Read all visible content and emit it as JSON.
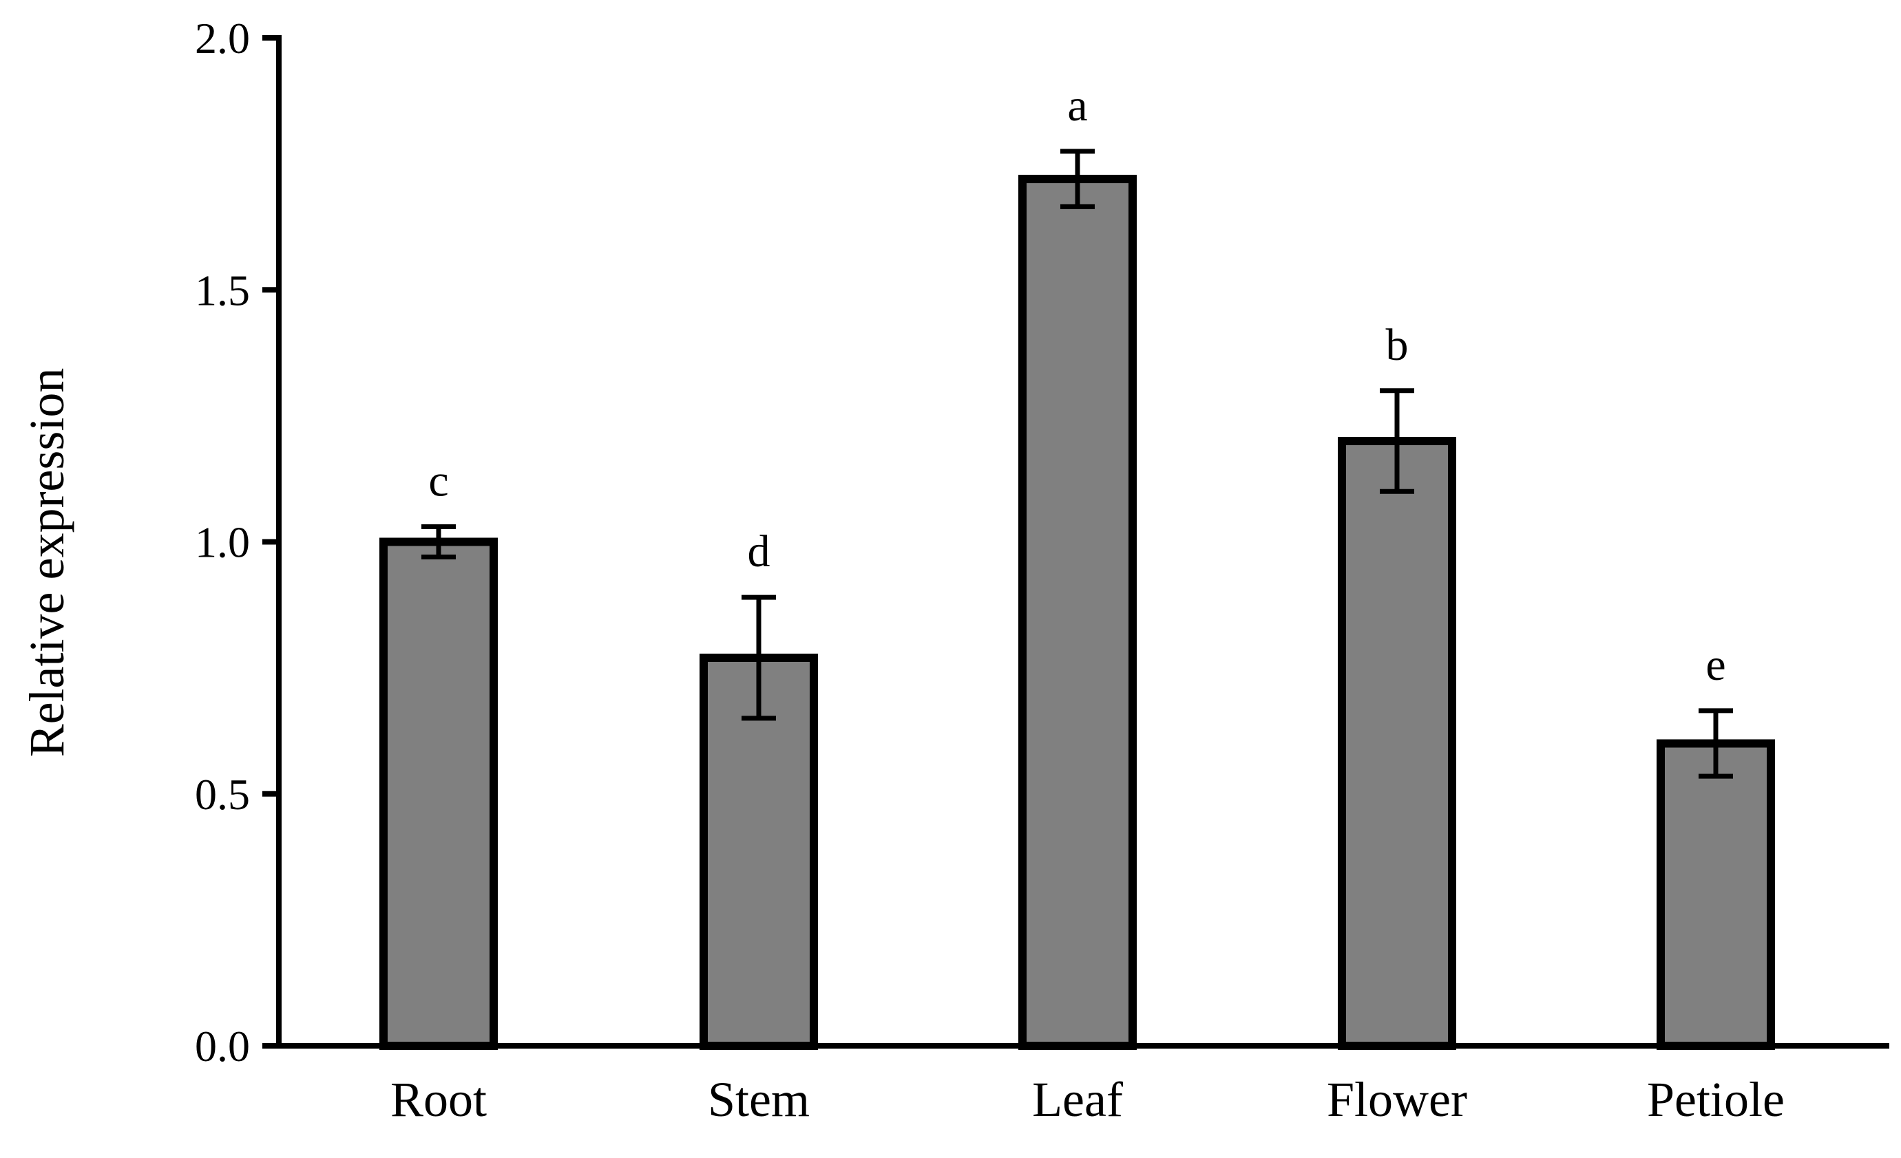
{
  "chart_data": {
    "type": "bar",
    "title": "",
    "xlabel": "",
    "ylabel": "Relative expression",
    "ylim": [
      0,
      2.0
    ],
    "yticks": [
      "0.0",
      "0.5",
      "1.0",
      "1.5",
      "2.0"
    ],
    "categories": [
      "Root",
      "Stem",
      "Leaf",
      "Flower",
      "Petiole"
    ],
    "series": [
      {
        "name": "Relative expression",
        "values": [
          1.0,
          0.77,
          1.72,
          1.2,
          0.6
        ],
        "errors": [
          0.03,
          0.12,
          0.055,
          0.1,
          0.065
        ],
        "significance": [
          "c",
          "d",
          "a",
          "b",
          "e"
        ]
      }
    ],
    "colors": {
      "bar_fill": "#808080",
      "bar_edge": "#000000"
    },
    "grid": false,
    "legend": "none"
  }
}
